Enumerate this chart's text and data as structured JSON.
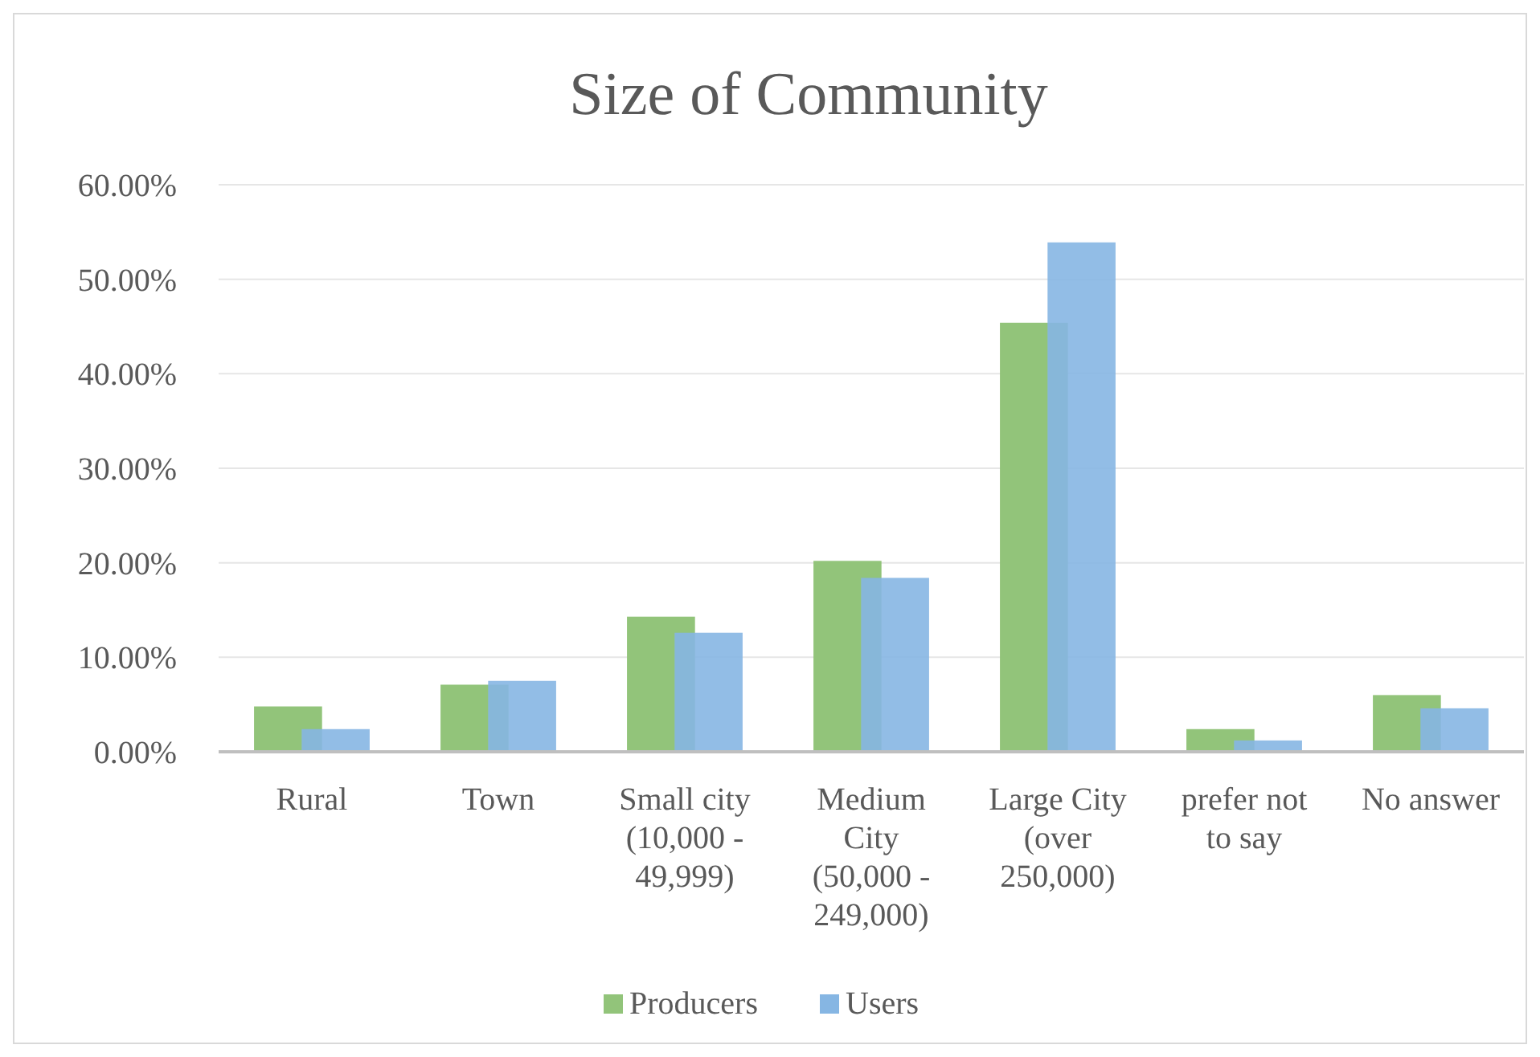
{
  "chart_data": {
    "type": "bar",
    "title": "Size of Community",
    "categories": [
      "Rural",
      "Town",
      "Small city (10,000 - 49,999)",
      "Medium City (50,000 - 249,000)",
      "Large City (over 250,000)",
      "prefer not to say",
      "No answer"
    ],
    "series": [
      {
        "name": "Producers",
        "color": "#92c47a",
        "values": [
          4.8,
          7.1,
          14.3,
          20.2,
          45.4,
          2.4,
          6.0
        ]
      },
      {
        "name": "Users",
        "color": "#86b6e3",
        "values": [
          2.4,
          7.5,
          12.6,
          18.4,
          53.9,
          1.2,
          4.6
        ]
      }
    ],
    "ylim": [
      0,
      60
    ],
    "yticks": [
      {
        "value": 0,
        "label": "0.00%"
      },
      {
        "value": 10,
        "label": "10.00%"
      },
      {
        "value": 20,
        "label": "20.00%"
      },
      {
        "value": 30,
        "label": "30.00%"
      },
      {
        "value": 40,
        "label": "40.00%"
      },
      {
        "value": 50,
        "label": "50.00%"
      },
      {
        "value": 60,
        "label": "60.00%"
      }
    ],
    "grid": "y",
    "legend": "bottom"
  }
}
